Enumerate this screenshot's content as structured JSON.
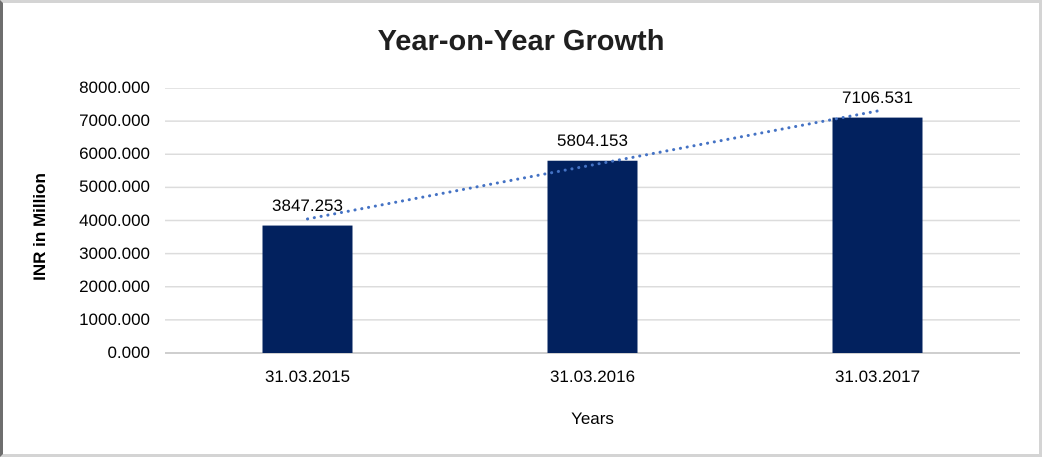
{
  "chart_data": {
    "type": "bar",
    "title": "Year-on-Year Growth",
    "xlabel": "Years",
    "ylabel": "INR in Million",
    "categories": [
      "31.03.2015",
      "31.03.2016",
      "31.03.2017"
    ],
    "values": [
      3847.253,
      5804.153,
      7106.531
    ],
    "data_labels": [
      "3847.253",
      "5804.153",
      "7106.531"
    ],
    "y_ticks": [
      "0.000",
      "1000.000",
      "2000.000",
      "3000.000",
      "4000.000",
      "5000.000",
      "6000.000",
      "7000.000",
      "8000.000"
    ],
    "ylim": [
      0,
      8000
    ],
    "grid": true,
    "legend_position": "none",
    "bar_color": "#02215E",
    "gridline_color": "#DCDCDC",
    "axis_line_color": "#CFCFCF",
    "trendline": {
      "type": "linear",
      "style": "dotted",
      "color": "#4472C4"
    }
  }
}
